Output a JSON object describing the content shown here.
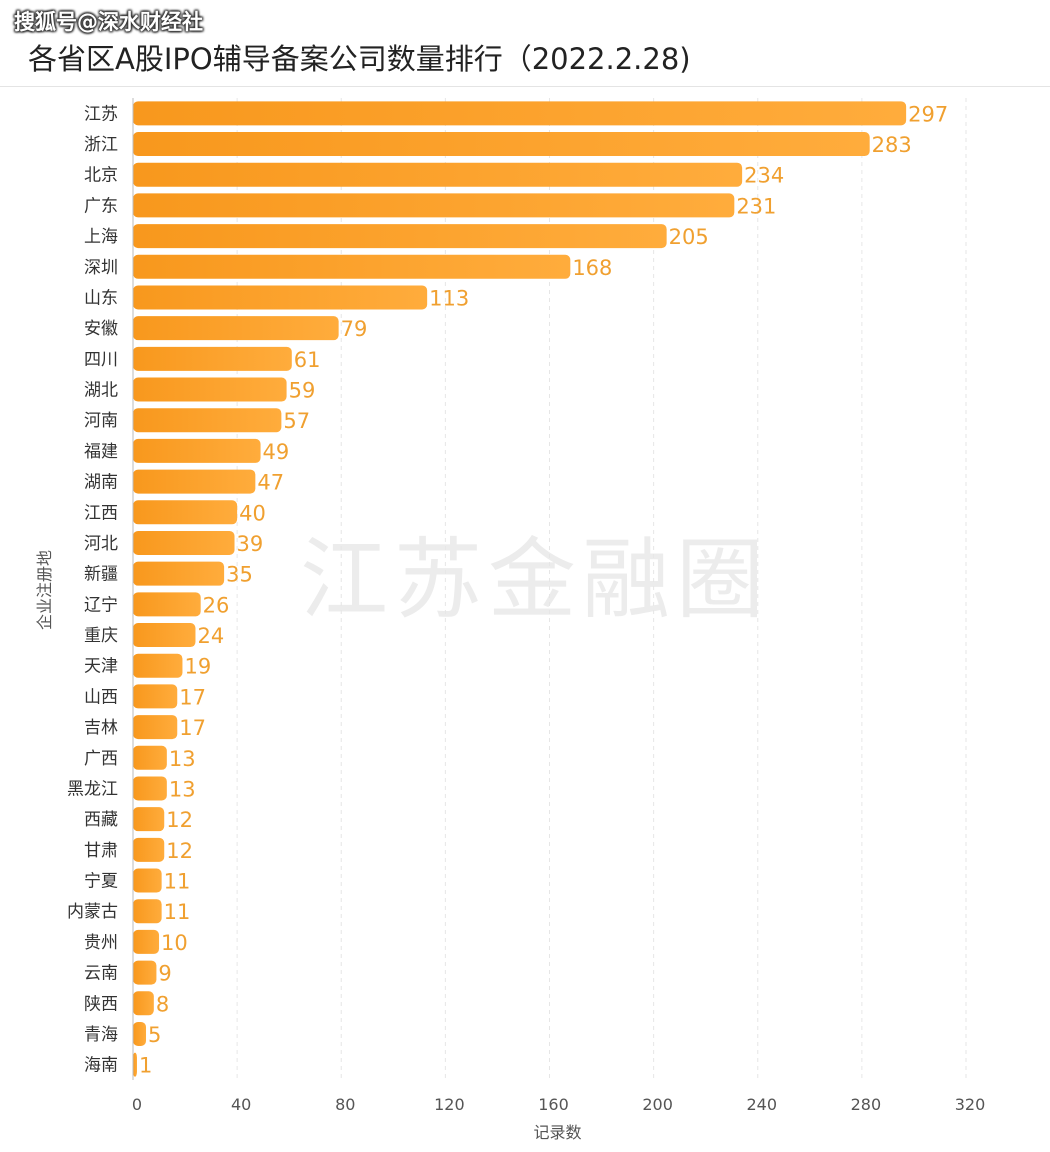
{
  "source_tag": "搜狐号@深水财经社",
  "watermark": "江苏金融圈",
  "colors": {
    "bar": "#f8981d",
    "bar_light": "#ffb347",
    "value_label": "#f0a030"
  },
  "chart_data": {
    "type": "bar",
    "orientation": "horizontal",
    "title": "各省区A股IPO辅导备案公司数量排行（2022.2.28)",
    "xlabel": "记录数",
    "ylabel": "企业注册地",
    "xlim": [
      0,
      320
    ],
    "xticks": [
      0,
      40,
      80,
      120,
      160,
      200,
      240,
      280,
      320
    ],
    "grid": "vertical-dashed",
    "legend": "none",
    "categories": [
      "江苏",
      "浙江",
      "北京",
      "广东",
      "上海",
      "深圳",
      "山东",
      "安徽",
      "四川",
      "湖北",
      "河南",
      "福建",
      "湖南",
      "江西",
      "河北",
      "新疆",
      "辽宁",
      "重庆",
      "天津",
      "山西",
      "吉林",
      "广西",
      "黑龙江",
      "西藏",
      "甘肃",
      "宁夏",
      "内蒙古",
      "贵州",
      "云南",
      "陕西",
      "青海",
      "海南"
    ],
    "values": [
      297,
      283,
      234,
      231,
      205,
      168,
      113,
      79,
      61,
      59,
      57,
      49,
      47,
      40,
      39,
      35,
      26,
      24,
      19,
      17,
      17,
      13,
      13,
      12,
      12,
      11,
      11,
      10,
      9,
      8,
      5,
      1
    ]
  }
}
